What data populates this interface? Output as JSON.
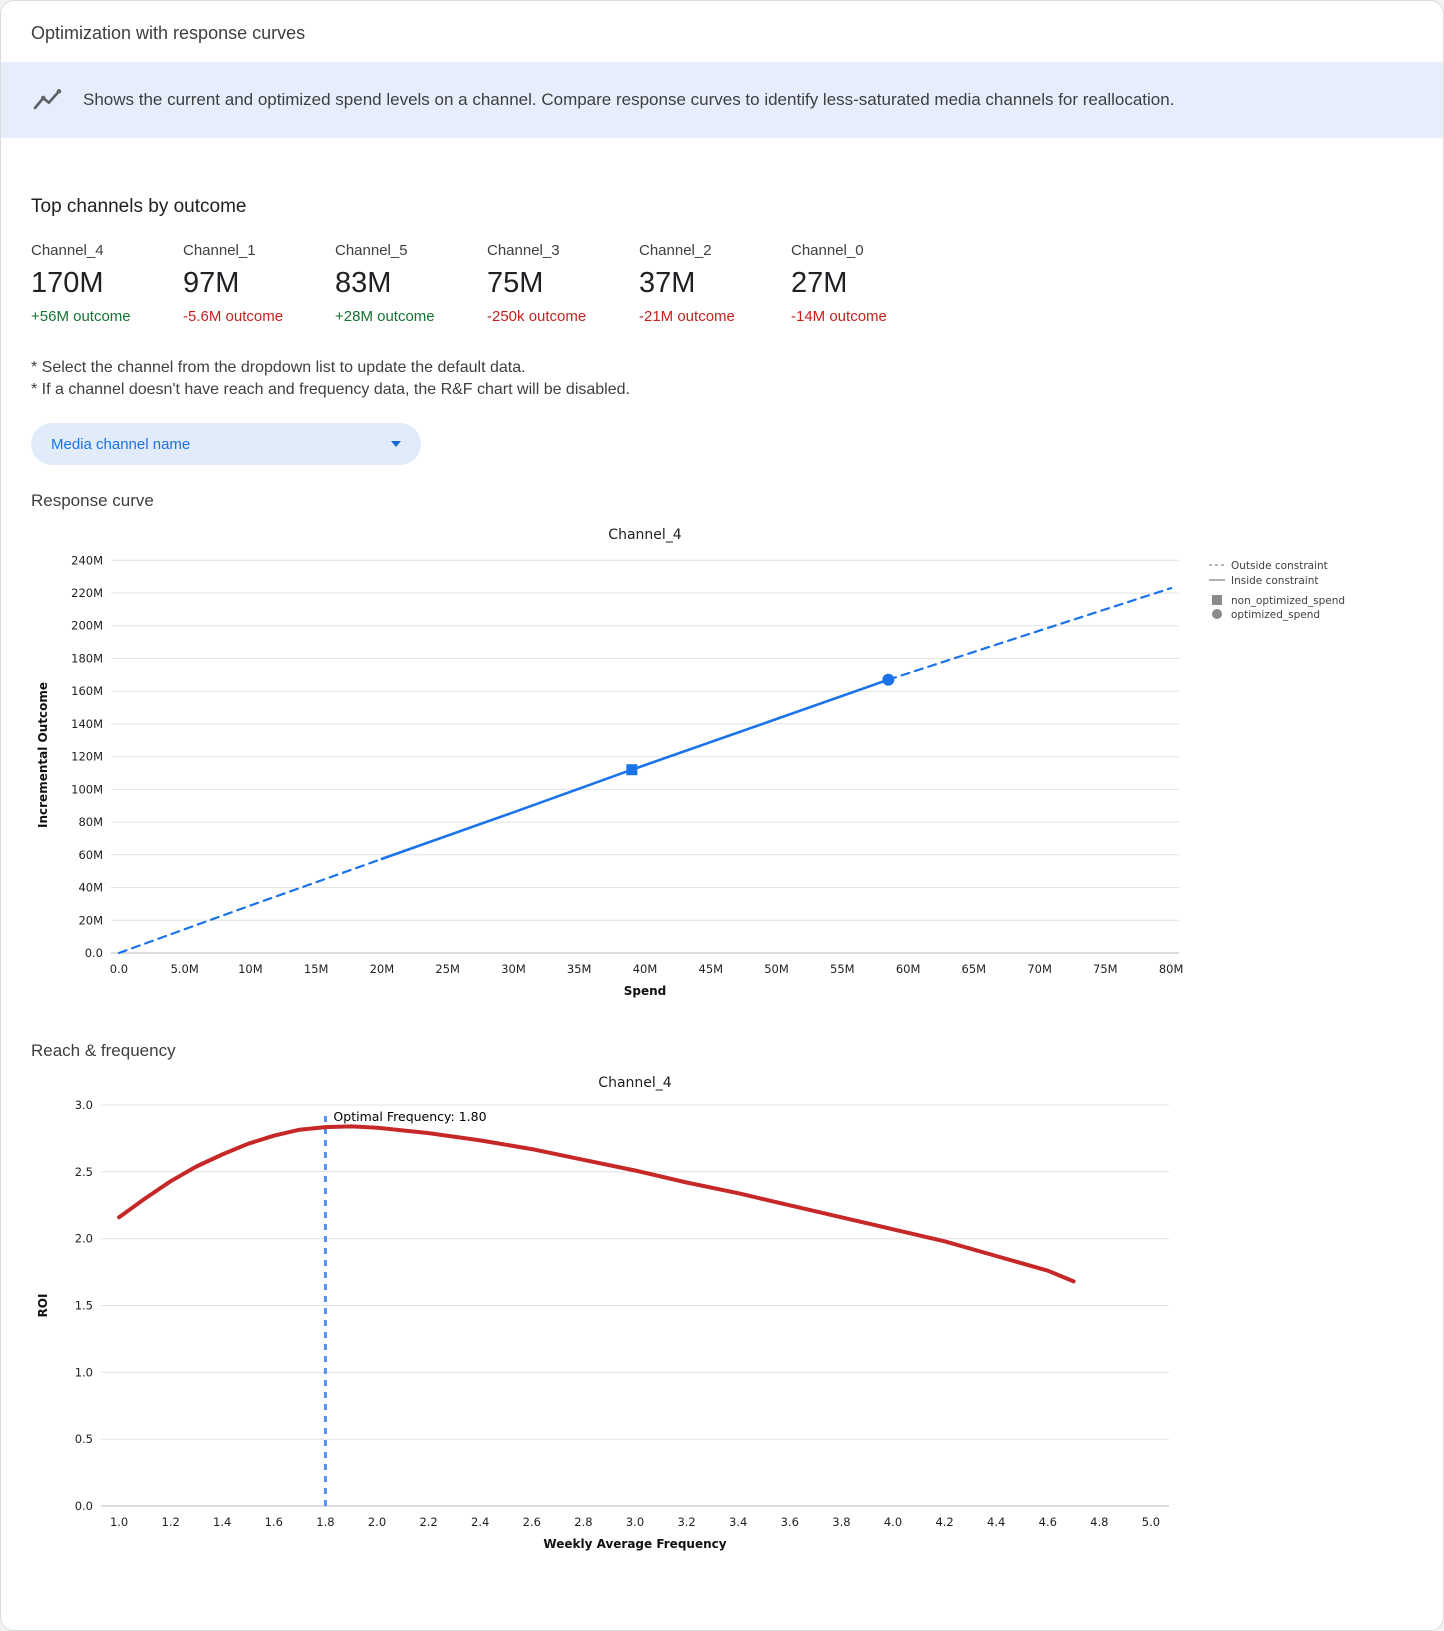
{
  "page": {
    "title": "Optimization with response curves",
    "banner_text": "Shows the current and optimized spend levels on a channel. Compare response curves to identify less-saturated media channels for reallocation."
  },
  "top_channels": {
    "heading": "Top channels by outcome",
    "items": [
      {
        "name": "Channel_4",
        "value": "170M",
        "delta": "+56M outcome",
        "positive": true
      },
      {
        "name": "Channel_1",
        "value": "97M",
        "delta": "-5.6M outcome",
        "positive": false
      },
      {
        "name": "Channel_5",
        "value": "83M",
        "delta": "+28M outcome",
        "positive": true
      },
      {
        "name": "Channel_3",
        "value": "75M",
        "delta": "-250k outcome",
        "positive": false
      },
      {
        "name": "Channel_2",
        "value": "37M",
        "delta": "-21M outcome",
        "positive": false
      },
      {
        "name": "Channel_0",
        "value": "27M",
        "delta": "-14M outcome",
        "positive": false
      }
    ]
  },
  "notes": [
    "* Select the channel from the dropdown list to update the default data.",
    "* If a channel doesn't have reach and frequency data, the R&F chart will be disabled."
  ],
  "dropdown": {
    "label": "Media channel name"
  },
  "sections": {
    "response_curve": "Response curve",
    "reach_frequency": "Reach & frequency"
  },
  "chart_data": [
    {
      "id": "response-curve",
      "type": "line",
      "title": "Channel_4",
      "xlabel": "Spend",
      "ylabel": "Incremental Outcome",
      "x_range": [
        -0.6,
        80.6
      ],
      "y_range": [
        0,
        242
      ],
      "grid": "horizontal",
      "legend_position": "right",
      "x_ticks": [
        [
          0,
          "0.0"
        ],
        [
          5,
          "5.0M"
        ],
        [
          10,
          "10M"
        ],
        [
          15,
          "15M"
        ],
        [
          20,
          "20M"
        ],
        [
          25,
          "25M"
        ],
        [
          30,
          "30M"
        ],
        [
          35,
          "35M"
        ],
        [
          40,
          "40M"
        ],
        [
          45,
          "45M"
        ],
        [
          50,
          "50M"
        ],
        [
          55,
          "55M"
        ],
        [
          60,
          "60M"
        ],
        [
          65,
          "65M"
        ],
        [
          70,
          "70M"
        ],
        [
          75,
          "75M"
        ],
        [
          80,
          "80M"
        ]
      ],
      "y_ticks": [
        [
          0,
          "0.0"
        ],
        [
          20,
          "20M"
        ],
        [
          40,
          "40M"
        ],
        [
          60,
          "60M"
        ],
        [
          80,
          "80M"
        ],
        [
          100,
          "100M"
        ],
        [
          120,
          "120M"
        ],
        [
          140,
          "140M"
        ],
        [
          160,
          "160M"
        ],
        [
          180,
          "180M"
        ],
        [
          200,
          "200M"
        ],
        [
          220,
          "220M"
        ],
        [
          240,
          "240M"
        ]
      ],
      "series": [
        {
          "name": "outside_constraint_lower",
          "style": "dashed",
          "color": "#1a73e8",
          "width": 2.2,
          "points": [
            [
              0,
              0
            ],
            [
              10,
              29
            ],
            [
              20,
              57.5
            ]
          ]
        },
        {
          "name": "inside_constraint",
          "style": "solid",
          "color": "#1a73e8",
          "width": 2.6,
          "points": [
            [
              20,
              57.5
            ],
            [
              30,
              86
            ],
            [
              39,
              112
            ],
            [
              50,
              143
            ],
            [
              58.5,
              167
            ]
          ]
        },
        {
          "name": "outside_constraint_upper",
          "style": "dashed",
          "color": "#1a73e8",
          "width": 2.2,
          "points": [
            [
              58.5,
              167
            ],
            [
              70,
              197
            ],
            [
              80,
              223
            ]
          ]
        }
      ],
      "markers": [
        {
          "shape": "square",
          "x": 39,
          "y": 112,
          "color": "#1a73e8",
          "label": "non_optimized_spend"
        },
        {
          "shape": "circle",
          "x": 58.5,
          "y": 167,
          "color": "#1a73e8",
          "label": "optimized_spend"
        }
      ],
      "legend": [
        {
          "type": "line-dashed",
          "label": "Outside constraint",
          "color": "#9aa0a6"
        },
        {
          "type": "line-solid",
          "label": "Inside constraint",
          "color": "#9aa0a6"
        },
        {
          "type": "square",
          "label": "non_optimized_spend",
          "color": "#8a8a8a"
        },
        {
          "type": "circle",
          "label": "optimized_spend",
          "color": "#8a8a8a"
        }
      ]
    },
    {
      "id": "reach-frequency",
      "type": "line",
      "title": "Channel_4",
      "xlabel": "Weekly Average Frequency",
      "ylabel": "ROI",
      "x_range": [
        0.93,
        5.07
      ],
      "y_range": [
        0,
        3.0
      ],
      "grid": "horizontal",
      "x_ticks": [
        [
          1.0,
          "1.0"
        ],
        [
          1.2,
          "1.2"
        ],
        [
          1.4,
          "1.4"
        ],
        [
          1.6,
          "1.6"
        ],
        [
          1.8,
          "1.8"
        ],
        [
          2.0,
          "2.0"
        ],
        [
          2.2,
          "2.2"
        ],
        [
          2.4,
          "2.4"
        ],
        [
          2.6,
          "2.6"
        ],
        [
          2.8,
          "2.8"
        ],
        [
          3.0,
          "3.0"
        ],
        [
          3.2,
          "3.2"
        ],
        [
          3.4,
          "3.4"
        ],
        [
          3.6,
          "3.6"
        ],
        [
          3.8,
          "3.8"
        ],
        [
          4.0,
          "4.0"
        ],
        [
          4.2,
          "4.2"
        ],
        [
          4.4,
          "4.4"
        ],
        [
          4.6,
          "4.6"
        ],
        [
          4.8,
          "4.8"
        ],
        [
          5.0,
          "5.0"
        ]
      ],
      "y_ticks": [
        [
          0,
          "0.0"
        ],
        [
          0.5,
          "0.5"
        ],
        [
          1.0,
          "1.0"
        ],
        [
          1.5,
          "1.5"
        ],
        [
          2.0,
          "2.0"
        ],
        [
          2.5,
          "2.5"
        ],
        [
          3.0,
          "3.0"
        ]
      ],
      "vline": {
        "x": 1.8,
        "top": 2.95,
        "color": "#5a8ff0",
        "style": "dashed"
      },
      "annotation": {
        "x": 1.8,
        "y": 2.88,
        "text": "Optimal Frequency: 1.80"
      },
      "series": [
        {
          "name": "roi_by_frequency",
          "style": "solid",
          "color": "#c62828",
          "width": 4,
          "points": [
            [
              1.0,
              2.16
            ],
            [
              1.1,
              2.3
            ],
            [
              1.2,
              2.43
            ],
            [
              1.3,
              2.54
            ],
            [
              1.4,
              2.63
            ],
            [
              1.5,
              2.71
            ],
            [
              1.6,
              2.77
            ],
            [
              1.7,
              2.815
            ],
            [
              1.8,
              2.835
            ],
            [
              1.9,
              2.84
            ],
            [
              2.0,
              2.83
            ],
            [
              2.2,
              2.79
            ],
            [
              2.4,
              2.735
            ],
            [
              2.6,
              2.67
            ],
            [
              2.8,
              2.59
            ],
            [
              3.0,
              2.51
            ],
            [
              3.2,
              2.42
            ],
            [
              3.4,
              2.34
            ],
            [
              3.6,
              2.25
            ],
            [
              3.8,
              2.16
            ],
            [
              4.0,
              2.07
            ],
            [
              4.2,
              1.98
            ],
            [
              4.4,
              1.87
            ],
            [
              4.6,
              1.76
            ],
            [
              4.7,
              1.68
            ]
          ]
        }
      ]
    }
  ]
}
